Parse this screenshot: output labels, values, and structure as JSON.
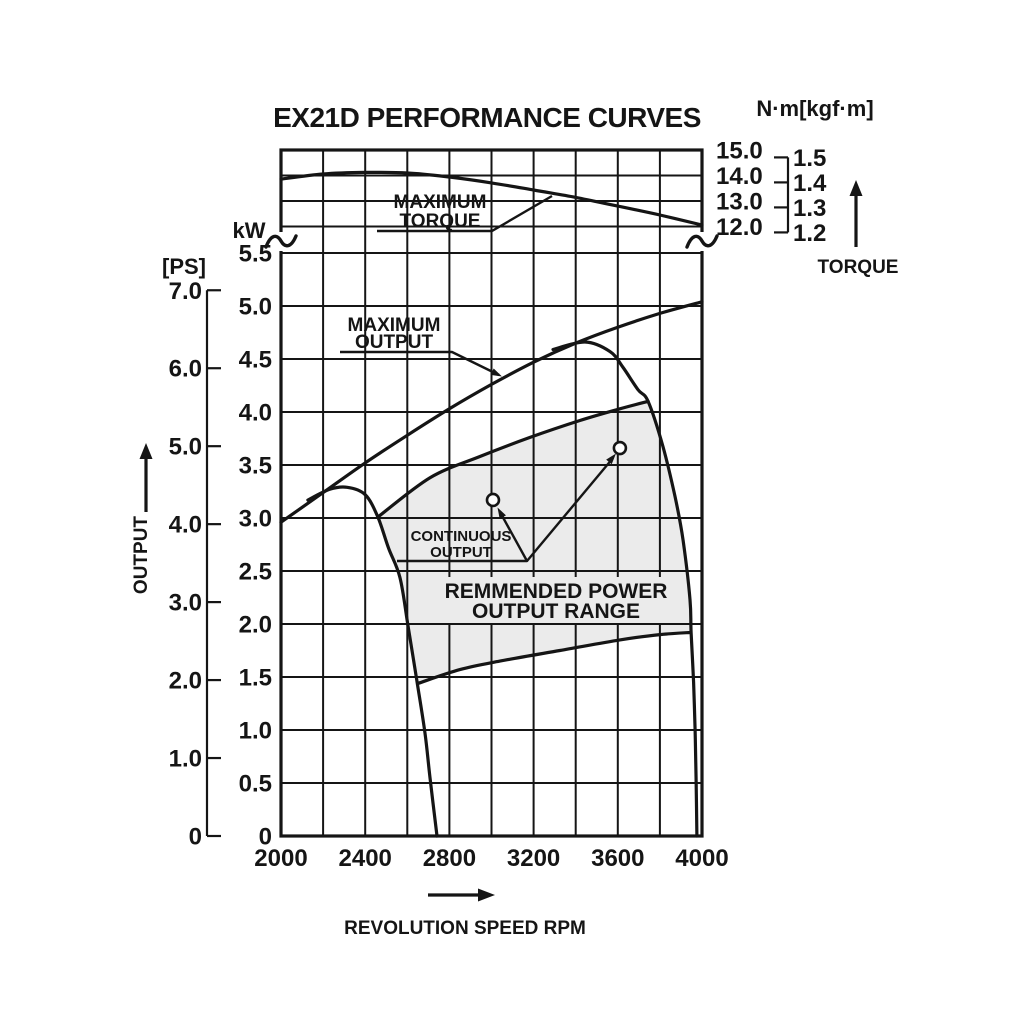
{
  "page": {
    "background": "#ffffff",
    "ink": "#151515",
    "region_fill": "#ebebeb"
  },
  "chart_data": {
    "type": "line",
    "title": "EX21D PERFORMANCE CURVES",
    "x_axis": {
      "label": "REVOLUTION SPEED RPM",
      "min": 2000,
      "max": 4000,
      "gridline_step_rpm": 200,
      "tick_labels": [
        "2000",
        "2400",
        "2800",
        "3200",
        "3600",
        "4000"
      ]
    },
    "torque_axis": {
      "header": "N·m[kgf·m]",
      "arrow_label": "TORQUE",
      "nm_ticks": [
        "15.0",
        "14.0",
        "13.0",
        "12.0"
      ],
      "kgfm_ticks": [
        "1.5",
        "1.4",
        "1.3",
        "1.2"
      ],
      "nm_range_shown": [
        12.0,
        15.0
      ]
    },
    "output_axis": {
      "kw_label": "kW",
      "ps_label": "[PS]",
      "arrow_label": "OUTPUT",
      "kw_ticks": [
        "5.5",
        "5.0",
        "4.5",
        "4.0",
        "3.5",
        "3.0",
        "2.5",
        "2.0",
        "1.5",
        "1.0",
        "0.5",
        "0"
      ],
      "ps_ticks": [
        "7.0",
        "6.0",
        "5.0",
        "4.0",
        "3.0",
        "2.0",
        "1.0",
        "0"
      ]
    },
    "annotations": {
      "maximum_torque": [
        "MAXIMUM",
        "TORQUE"
      ],
      "maximum_output": [
        "MAXIMUM",
        "OUTPUT"
      ],
      "continuous_output": [
        "CONTINUOUS",
        "OUTPUT"
      ]
    },
    "series": [
      {
        "name": "maximum-torque-curve",
        "axis": "torque",
        "unit": "N·m",
        "points": [
          [
            2000,
            13.86
          ],
          [
            2200,
            14.06
          ],
          [
            2400,
            14.12
          ],
          [
            2600,
            14.1
          ],
          [
            2800,
            13.94
          ],
          [
            3000,
            13.71
          ],
          [
            3200,
            13.43
          ],
          [
            3400,
            13.14
          ],
          [
            3600,
            12.8
          ],
          [
            3800,
            12.45
          ],
          [
            4000,
            12.06
          ]
        ]
      },
      {
        "name": "maximum-output-curve",
        "axis": "kw",
        "unit": "kW",
        "points": [
          [
            2000,
            2.96
          ],
          [
            2200,
            3.24
          ],
          [
            2400,
            3.52
          ],
          [
            2600,
            3.78
          ],
          [
            2800,
            4.03
          ],
          [
            3000,
            4.26
          ],
          [
            3200,
            4.47
          ],
          [
            3400,
            4.65
          ],
          [
            3600,
            4.8
          ],
          [
            3800,
            4.93
          ],
          [
            4000,
            5.04
          ]
        ]
      },
      {
        "name": "continuous-output-curve",
        "axis": "kw",
        "unit": "kW",
        "points": [
          [
            2461,
            3.01
          ],
          [
            2708,
            3.38
          ],
          [
            2945,
            3.58
          ],
          [
            3183,
            3.76
          ],
          [
            3420,
            3.92
          ],
          [
            3610,
            4.03
          ],
          [
            3744,
            4.1
          ]
        ]
      },
      {
        "name": "low-speed-limit-curve",
        "axis": "kw",
        "unit": "kW",
        "points": [
          [
            2128,
            3.17
          ],
          [
            2230,
            3.27
          ],
          [
            2314,
            3.29
          ],
          [
            2400,
            3.22
          ],
          [
            2460,
            3.01
          ],
          [
            2510,
            2.72
          ],
          [
            2565,
            2.44
          ],
          [
            2603,
            1.99
          ],
          [
            2645,
            1.47
          ],
          [
            2684,
            0.97
          ],
          [
            2708,
            0.55
          ],
          [
            2741,
            0
          ]
        ]
      },
      {
        "name": "high-speed-limit-curve",
        "axis": "kw",
        "unit": "kW",
        "points": [
          [
            3292,
            4.59
          ],
          [
            3444,
            4.66
          ],
          [
            3563,
            4.57
          ],
          [
            3625,
            4.42
          ],
          [
            3696,
            4.21
          ],
          [
            3744,
            4.1
          ],
          [
            3815,
            3.67
          ],
          [
            3872,
            3.2
          ],
          [
            3910,
            2.79
          ],
          [
            3943,
            2.23
          ],
          [
            3948,
            1.92
          ],
          [
            3960,
            1.45
          ],
          [
            3967,
            1.0
          ],
          [
            3972,
            0.53
          ],
          [
            3976,
            0
          ]
        ]
      },
      {
        "name": "range-bottom-line",
        "axis": "kw",
        "unit": "kW",
        "points": [
          [
            2651,
            1.44
          ],
          [
            2850,
            1.57
          ],
          [
            3040,
            1.65
          ],
          [
            3325,
            1.75
          ],
          [
            3610,
            1.85
          ],
          [
            3800,
            1.9
          ],
          [
            3943,
            1.92
          ]
        ]
      }
    ],
    "region": {
      "label_lines": [
        "REMMENDED POWER",
        "OUTPUT RANGE"
      ],
      "boundary_rpm_kw": [
        [
          2461,
          3.01
        ],
        [
          2708,
          3.38
        ],
        [
          2945,
          3.58
        ],
        [
          3183,
          3.76
        ],
        [
          3420,
          3.92
        ],
        [
          3610,
          4.03
        ],
        [
          3744,
          4.1
        ],
        [
          3815,
          3.67
        ],
        [
          3872,
          3.2
        ],
        [
          3910,
          2.79
        ],
        [
          3943,
          2.23
        ],
        [
          3948,
          1.92
        ],
        [
          3800,
          1.9
        ],
        [
          3610,
          1.85
        ],
        [
          3325,
          1.75
        ],
        [
          3040,
          1.65
        ],
        [
          2850,
          1.57
        ],
        [
          2651,
          1.44
        ],
        [
          2645,
          1.47
        ],
        [
          2603,
          1.99
        ],
        [
          2565,
          2.44
        ],
        [
          2510,
          2.72
        ],
        [
          2460,
          3.01
        ]
      ]
    },
    "markers_rpm_kw": [
      [
        3007,
        3.17
      ],
      [
        3610,
        3.66
      ]
    ]
  }
}
